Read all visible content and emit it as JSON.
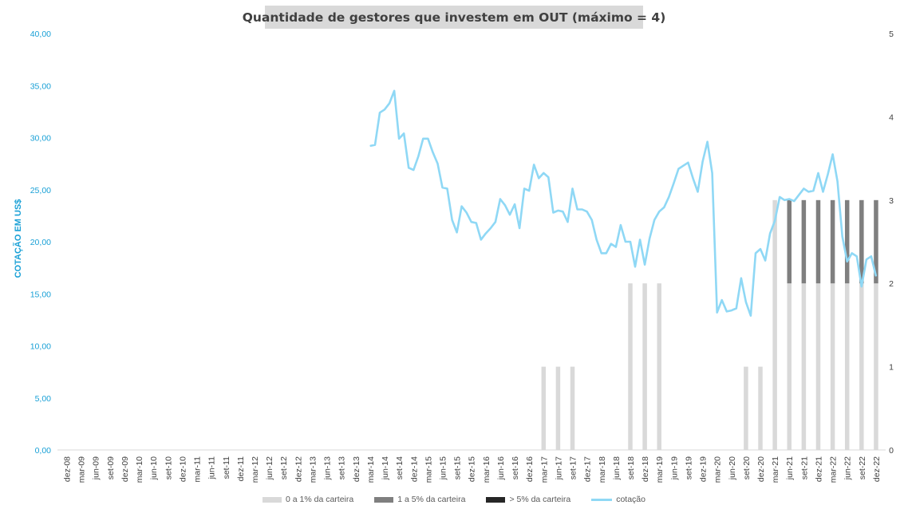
{
  "chart_data": {
    "type": "bar",
    "title": "Quantidade de gestores que investem em OUT (máximo = 4)",
    "ylabel": "COTAÇÃO EM US$",
    "xlabel": "",
    "ylim": [
      0,
      40
    ],
    "y2lim": [
      0,
      5
    ],
    "y_ticks": [
      "0,00",
      "5,00",
      "10,00",
      "15,00",
      "20,00",
      "25,00",
      "30,00",
      "35,00",
      "40,00"
    ],
    "y2_ticks": [
      "0",
      "1",
      "2",
      "3",
      "4",
      "5"
    ],
    "categories": [
      "dez-08",
      "mar-09",
      "jun-09",
      "set-09",
      "dez-09",
      "mar-10",
      "jun-10",
      "set-10",
      "dez-10",
      "mar-11",
      "jun-11",
      "set-11",
      "dez-11",
      "mar-12",
      "jun-12",
      "set-12",
      "dez-12",
      "mar-13",
      "jun-13",
      "set-13",
      "dez-13",
      "mar-14",
      "jun-14",
      "set-14",
      "dez-14",
      "mar-15",
      "jun-15",
      "set-15",
      "dez-15",
      "mar-16",
      "jun-16",
      "set-16",
      "dez-16",
      "mar-17",
      "jun-17",
      "set-17",
      "dez-17",
      "mar-18",
      "jun-18",
      "set-18",
      "dez-18",
      "mar-19",
      "jun-19",
      "set-19",
      "dez-19",
      "mar-20",
      "jun-20",
      "set-20",
      "dez-20",
      "mar-21",
      "jun-21",
      "set-21",
      "dez-21",
      "mar-22",
      "jun-22",
      "set-22",
      "dez-22"
    ],
    "grid": false,
    "legend_position": "bottom",
    "series": [
      {
        "name": "0 a 1% da carteira",
        "color": "#d9d9d9",
        "values": [
          0,
          0,
          0,
          0,
          0,
          0,
          0,
          0,
          0,
          0,
          0,
          0,
          0,
          0,
          0,
          0,
          0,
          0,
          0,
          0,
          0,
          0,
          0,
          0,
          0,
          0,
          0,
          0,
          0,
          0,
          0,
          0,
          0,
          1,
          1,
          1,
          0,
          0,
          0,
          2,
          2,
          2,
          0,
          0,
          0,
          0,
          0,
          1,
          1,
          3,
          2,
          2,
          2,
          2,
          2,
          2,
          2
        ]
      },
      {
        "name": "1 a 5% da carteira",
        "color": "#7f7f7f",
        "values": [
          0,
          0,
          0,
          0,
          0,
          0,
          0,
          0,
          0,
          0,
          0,
          0,
          0,
          0,
          0,
          0,
          0,
          0,
          0,
          0,
          0,
          0,
          0,
          0,
          0,
          0,
          0,
          0,
          0,
          0,
          0,
          0,
          0,
          0,
          0,
          0,
          0,
          0,
          0,
          0,
          0,
          0,
          0,
          0,
          0,
          0,
          0,
          0,
          0,
          0,
          1,
          1,
          1,
          1,
          1,
          1,
          1
        ]
      },
      {
        "name": "> 5% da carteira",
        "color": "#262626",
        "values": [
          0,
          0,
          0,
          0,
          0,
          0,
          0,
          0,
          0,
          0,
          0,
          0,
          0,
          0,
          0,
          0,
          0,
          0,
          0,
          0,
          0,
          0,
          0,
          0,
          0,
          0,
          0,
          0,
          0,
          0,
          0,
          0,
          0,
          0,
          0,
          0,
          0,
          0,
          0,
          0,
          0,
          0,
          0,
          0,
          0,
          0,
          0,
          0,
          0,
          0,
          0,
          0,
          0,
          0,
          0,
          0,
          0
        ]
      },
      {
        "name": "cotação",
        "type": "line",
        "color": "#8fd8f5",
        "x": [
          "mar-14",
          "abr-14",
          "mai-14",
          "jun-14",
          "jul-14",
          "ago-14",
          "set-14",
          "out-14",
          "nov-14",
          "dez-14",
          "jan-15",
          "fev-15",
          "mar-15",
          "abr-15",
          "mai-15",
          "jun-15",
          "jul-15",
          "ago-15",
          "set-15",
          "out-15",
          "nov-15",
          "dez-15",
          "jan-16",
          "fev-16",
          "mar-16",
          "abr-16",
          "mai-16",
          "jun-16",
          "jul-16",
          "ago-16",
          "set-16",
          "out-16",
          "nov-16",
          "dez-16",
          "jan-17",
          "fev-17",
          "mar-17",
          "abr-17",
          "mai-17",
          "jun-17",
          "jul-17",
          "ago-17",
          "set-17",
          "out-17",
          "nov-17",
          "dez-17",
          "jan-18",
          "fev-18",
          "mar-18",
          "abr-18",
          "mai-18",
          "jun-18",
          "jul-18",
          "ago-18",
          "set-18",
          "out-18",
          "nov-18",
          "dez-18",
          "jan-19",
          "fev-19",
          "mar-19",
          "abr-19",
          "mai-19",
          "jun-19",
          "jul-19",
          "ago-19",
          "set-19",
          "out-19",
          "nov-19",
          "dez-19",
          "jan-20",
          "fev-20",
          "mar-20",
          "abr-20",
          "mai-20",
          "jun-20",
          "jul-20",
          "ago-20",
          "set-20",
          "out-20",
          "nov-20",
          "dez-20",
          "jan-21",
          "fev-21",
          "mar-21",
          "abr-21",
          "mai-21",
          "jun-21",
          "jul-21",
          "ago-21",
          "set-21",
          "out-21",
          "nov-21",
          "dez-21",
          "jan-22",
          "fev-22",
          "mar-22",
          "abr-22",
          "mai-22",
          "jun-22",
          "jul-22",
          "ago-22",
          "set-22",
          "out-22",
          "nov-22",
          "dez-22"
        ],
        "values": [
          29.2,
          29.3,
          32.4,
          32.7,
          33.3,
          34.5,
          29.9,
          30.4,
          27.1,
          26.9,
          28.2,
          29.9,
          29.9,
          28.6,
          27.5,
          25.2,
          25.1,
          22.1,
          20.9,
          23.4,
          22.8,
          21.9,
          21.8,
          20.2,
          20.8,
          21.3,
          21.9,
          24.1,
          23.5,
          22.6,
          23.6,
          21.3,
          25.1,
          24.9,
          27.4,
          26.1,
          26.6,
          26.2,
          22.8,
          23.0,
          22.9,
          21.9,
          25.1,
          23.1,
          23.1,
          22.9,
          22.1,
          20.2,
          18.9,
          18.9,
          19.8,
          19.5,
          21.6,
          20.0,
          20.0,
          17.6,
          20.2,
          17.8,
          20.3,
          22.1,
          22.9,
          23.3,
          24.3,
          25.6,
          27.0,
          27.3,
          27.6,
          26.1,
          24.8,
          27.7,
          29.6,
          26.6,
          13.2,
          14.4,
          13.3,
          13.4,
          13.6,
          16.5,
          14.2,
          12.9,
          18.9,
          19.3,
          18.2,
          20.8,
          22.0,
          24.3,
          24.0,
          24.1,
          23.9,
          24.5,
          25.1,
          24.8,
          24.9,
          26.6,
          24.8,
          26.5,
          28.4,
          25.8,
          20.5,
          18.1,
          18.9,
          18.6,
          15.7,
          18.3,
          18.6,
          16.7
        ]
      }
    ]
  }
}
